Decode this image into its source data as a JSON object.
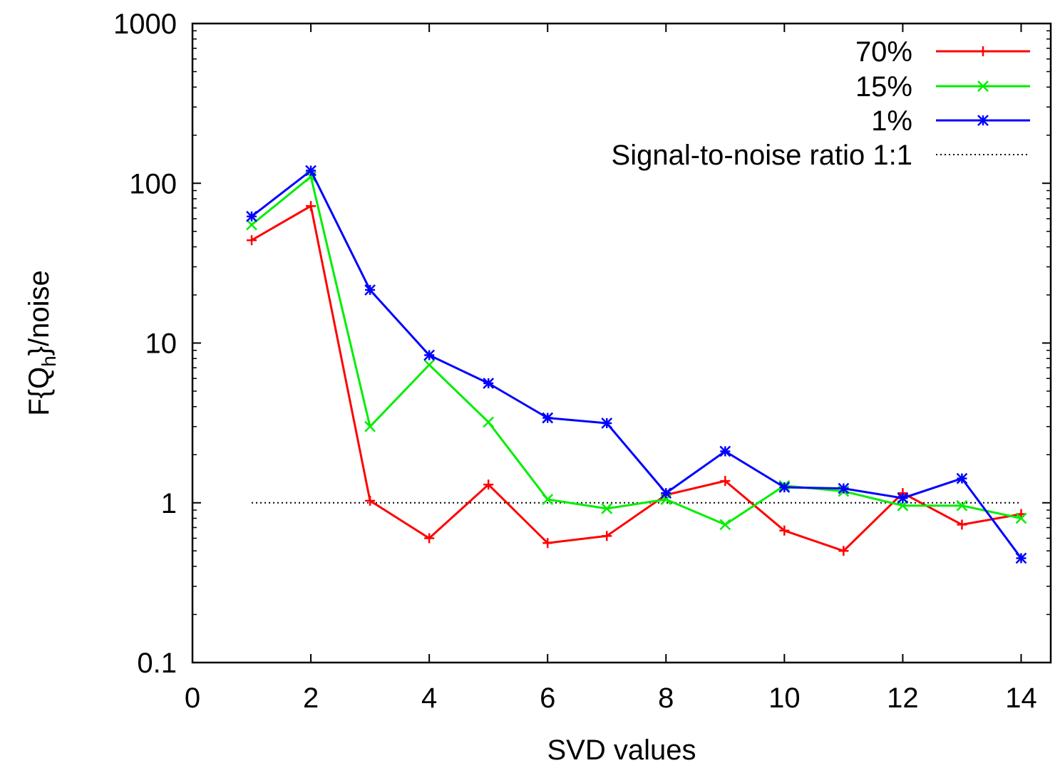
{
  "chart_data": {
    "type": "line",
    "xlabel": "SVD values",
    "ylabel": {
      "main": "F{Q",
      "sub": "h",
      "end": "}/noise"
    },
    "xlim": [
      0,
      14.5
    ],
    "ylim": [
      0.1,
      1000
    ],
    "yscale": "log",
    "x_ticks": [
      0,
      2,
      4,
      6,
      8,
      10,
      12,
      14
    ],
    "y_ticks": [
      0.1,
      1,
      10,
      100,
      1000
    ],
    "y_tick_labels": [
      "0.1",
      "1",
      "10",
      "100",
      "1000"
    ],
    "grid": false,
    "legend_position": "top-right",
    "x": [
      1,
      2,
      3,
      4,
      5,
      6,
      7,
      8,
      9,
      10,
      11,
      12,
      13,
      14
    ],
    "series": [
      {
        "name": "70%",
        "color": "#ff0000",
        "marker": "plus",
        "values": [
          44,
          72,
          1.03,
          0.6,
          1.3,
          0.56,
          0.62,
          1.12,
          1.37,
          0.67,
          0.5,
          1.15,
          0.73,
          0.85
        ]
      },
      {
        "name": "15%",
        "color": "#00ee00",
        "marker": "cross",
        "values": [
          55,
          110,
          3.0,
          7.3,
          3.2,
          1.05,
          0.92,
          1.05,
          0.73,
          1.28,
          1.18,
          0.96,
          0.96,
          0.8
        ]
      },
      {
        "name": "1%",
        "color": "#0000ff",
        "marker": "star",
        "values": [
          62,
          120,
          21.5,
          8.4,
          5.6,
          3.4,
          3.15,
          1.15,
          2.1,
          1.25,
          1.23,
          1.07,
          1.42,
          0.45
        ]
      }
    ],
    "reference_line": {
      "name": "Signal-to-noise ratio 1:1",
      "value": 1,
      "x_range": [
        1,
        14
      ],
      "color": "#000000",
      "style": "dotted"
    }
  }
}
